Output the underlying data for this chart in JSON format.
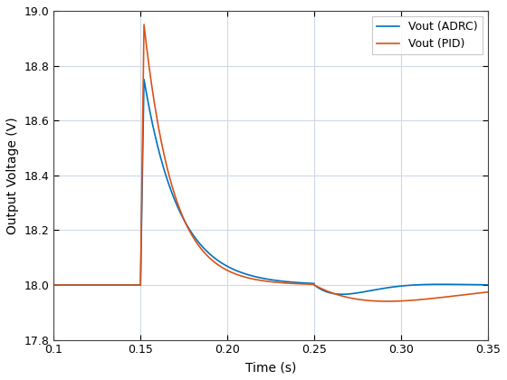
{
  "title": "",
  "xlabel": "Time (s)",
  "ylabel": "Output Voltage (V)",
  "xlim": [
    0.1,
    0.35
  ],
  "ylim": [
    17.8,
    19.0
  ],
  "xticks": [
    0.1,
    0.15,
    0.2,
    0.25,
    0.3,
    0.35
  ],
  "yticks": [
    17.8,
    18.0,
    18.2,
    18.4,
    18.6,
    18.8,
    19.0
  ],
  "adrc_color": "#0072BD",
  "pid_color": "#D95319",
  "legend_labels": [
    "Vout (ADRC)",
    "Vout (PID)"
  ],
  "background_color": "#ffffff",
  "grid_color": "#d0d8e8",
  "adrc_peak": 18.75,
  "pid_peak": 18.95,
  "adrc_decay": 50.0,
  "pid_decay": 60.0,
  "adrc_dip_amp": 0.09,
  "adrc_dip_freq": 55.0,
  "adrc_dip_decay": 45.0,
  "pid_dip_amp": 0.17,
  "pid_dip_freq": 20.0,
  "pid_dip_decay": 18.0
}
